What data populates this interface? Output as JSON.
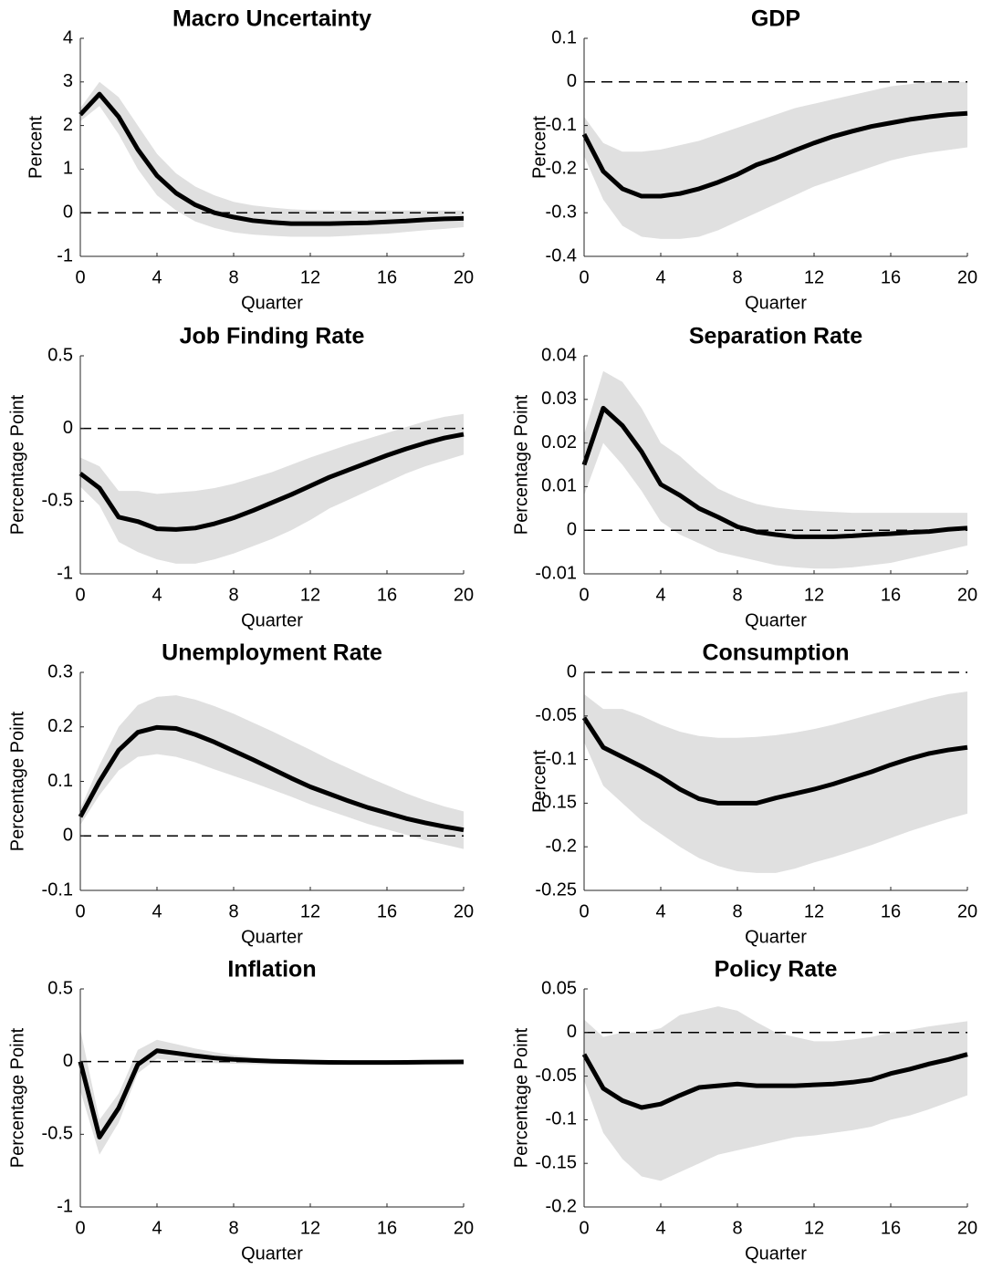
{
  "chart_data": [
    {
      "type": "line",
      "title": "Macro Uncertainty",
      "xlabel": "Quarter",
      "ylabel": "Percent",
      "x": [
        0,
        1,
        2,
        3,
        4,
        5,
        6,
        7,
        8,
        9,
        10,
        11,
        12,
        13,
        14,
        15,
        16,
        17,
        18,
        19,
        20
      ],
      "xlim": [
        0,
        20
      ],
      "xticks": [
        0,
        4,
        8,
        12,
        16,
        20
      ],
      "ylim": [
        -1,
        4
      ],
      "yticks": [
        -1,
        0,
        1,
        2,
        3,
        4
      ],
      "reference_line": 0,
      "series": [
        {
          "color": "#000000",
          "values": [
            2.25,
            2.72,
            2.2,
            1.45,
            0.85,
            0.45,
            0.18,
            0.0,
            -0.1,
            -0.18,
            -0.22,
            -0.25,
            -0.25,
            -0.25,
            -0.24,
            -0.23,
            -0.21,
            -0.19,
            -0.16,
            -0.14,
            -0.13
          ]
        }
      ],
      "band": {
        "color": "#e0e0e0",
        "upper": [
          2.4,
          3.0,
          2.65,
          2.0,
          1.35,
          0.9,
          0.6,
          0.4,
          0.25,
          0.17,
          0.12,
          0.08,
          0.06,
          0.05,
          0.05,
          0.05,
          0.05,
          0.05,
          0.05,
          0.05,
          0.05
        ],
        "lower": [
          2.1,
          2.45,
          1.8,
          1.0,
          0.4,
          0.05,
          -0.2,
          -0.35,
          -0.45,
          -0.5,
          -0.53,
          -0.55,
          -0.55,
          -0.55,
          -0.53,
          -0.5,
          -0.48,
          -0.44,
          -0.4,
          -0.37,
          -0.33
        ]
      }
    },
    {
      "type": "line",
      "title": "GDP",
      "xlabel": "Quarter",
      "ylabel": "Percent",
      "x": [
        0,
        1,
        2,
        3,
        4,
        5,
        6,
        7,
        8,
        9,
        10,
        11,
        12,
        13,
        14,
        15,
        16,
        17,
        18,
        19,
        20
      ],
      "xlim": [
        0,
        20
      ],
      "xticks": [
        0,
        4,
        8,
        12,
        16,
        20
      ],
      "ylim": [
        -0.4,
        0.1
      ],
      "yticks": [
        -0.4,
        -0.3,
        -0.2,
        -0.1,
        0,
        0.1
      ],
      "reference_line": 0,
      "series": [
        {
          "color": "#000000",
          "values": [
            -0.12,
            -0.205,
            -0.245,
            -0.262,
            -0.262,
            -0.256,
            -0.245,
            -0.23,
            -0.212,
            -0.19,
            -0.175,
            -0.157,
            -0.14,
            -0.125,
            -0.113,
            -0.102,
            -0.094,
            -0.086,
            -0.08,
            -0.075,
            -0.072
          ]
        }
      ],
      "band": {
        "color": "#e0e0e0",
        "upper": [
          -0.08,
          -0.14,
          -0.16,
          -0.16,
          -0.155,
          -0.145,
          -0.135,
          -0.12,
          -0.105,
          -0.09,
          -0.075,
          -0.06,
          -0.05,
          -0.04,
          -0.03,
          -0.02,
          -0.01,
          -0.005,
          0,
          0,
          0
        ],
        "lower": [
          -0.17,
          -0.27,
          -0.33,
          -0.355,
          -0.36,
          -0.36,
          -0.355,
          -0.34,
          -0.32,
          -0.3,
          -0.28,
          -0.26,
          -0.24,
          -0.225,
          -0.21,
          -0.195,
          -0.18,
          -0.17,
          -0.162,
          -0.156,
          -0.15
        ]
      }
    },
    {
      "type": "line",
      "title": "Job Finding Rate",
      "xlabel": "Quarter",
      "ylabel": "Percentage Point",
      "x": [
        0,
        1,
        2,
        3,
        4,
        5,
        6,
        7,
        8,
        9,
        10,
        11,
        12,
        13,
        14,
        15,
        16,
        17,
        18,
        19,
        20
      ],
      "xlim": [
        0,
        20
      ],
      "xticks": [
        0,
        4,
        8,
        12,
        16,
        20
      ],
      "ylim": [
        -1,
        0.5
      ],
      "yticks": [
        -1,
        -0.5,
        0,
        0.5
      ],
      "reference_line": 0,
      "series": [
        {
          "color": "#000000",
          "values": [
            -0.31,
            -0.41,
            -0.61,
            -0.64,
            -0.69,
            -0.695,
            -0.685,
            -0.655,
            -0.615,
            -0.565,
            -0.51,
            -0.455,
            -0.395,
            -0.335,
            -0.285,
            -0.235,
            -0.185,
            -0.14,
            -0.1,
            -0.065,
            -0.04
          ]
        }
      ],
      "band": {
        "color": "#e0e0e0",
        "upper": [
          -0.2,
          -0.26,
          -0.43,
          -0.43,
          -0.45,
          -0.44,
          -0.43,
          -0.41,
          -0.38,
          -0.34,
          -0.3,
          -0.25,
          -0.2,
          -0.155,
          -0.11,
          -0.07,
          -0.03,
          0.01,
          0.05,
          0.08,
          0.1
        ],
        "lower": [
          -0.4,
          -0.53,
          -0.78,
          -0.85,
          -0.9,
          -0.93,
          -0.93,
          -0.9,
          -0.86,
          -0.81,
          -0.76,
          -0.7,
          -0.63,
          -0.55,
          -0.49,
          -0.43,
          -0.37,
          -0.31,
          -0.26,
          -0.22,
          -0.18
        ]
      }
    },
    {
      "type": "line",
      "title": "Separation Rate",
      "xlabel": "Quarter",
      "ylabel": "Percentage Point",
      "x": [
        0,
        1,
        2,
        3,
        4,
        5,
        6,
        7,
        8,
        9,
        10,
        11,
        12,
        13,
        14,
        15,
        16,
        17,
        18,
        19,
        20
      ],
      "xlim": [
        0,
        20
      ],
      "xticks": [
        0,
        4,
        8,
        12,
        16,
        20
      ],
      "ylim": [
        -0.01,
        0.04
      ],
      "yticks": [
        -0.01,
        0,
        0.01,
        0.02,
        0.03,
        0.04
      ],
      "reference_line": 0,
      "series": [
        {
          "color": "#000000",
          "values": [
            0.015,
            0.028,
            0.024,
            0.018,
            0.0105,
            0.008,
            0.005,
            0.003,
            0.0008,
            -0.0004,
            -0.001,
            -0.0015,
            -0.0015,
            -0.0015,
            -0.0013,
            -0.001,
            -0.0008,
            -0.0005,
            -0.0003,
            0.0002,
            0.0005
          ]
        }
      ],
      "band": {
        "color": "#e0e0e0",
        "upper": [
          0.022,
          0.0365,
          0.034,
          0.028,
          0.02,
          0.017,
          0.013,
          0.0095,
          0.0075,
          0.006,
          0.0052,
          0.0047,
          0.0044,
          0.0042,
          0.004,
          0.004,
          0.004,
          0.004,
          0.004,
          0.004,
          0.004
        ],
        "lower": [
          0.008,
          0.02,
          0.015,
          0.009,
          0.002,
          -0.001,
          -0.003,
          -0.005,
          -0.006,
          -0.007,
          -0.008,
          -0.0085,
          -0.0088,
          -0.0088,
          -0.0085,
          -0.008,
          -0.0075,
          -0.0065,
          -0.0055,
          -0.0045,
          -0.0035
        ]
      }
    },
    {
      "type": "line",
      "title": "Unemployment Rate",
      "xlabel": "Quarter",
      "ylabel": "Percentage Point",
      "x": [
        0,
        1,
        2,
        3,
        4,
        5,
        6,
        7,
        8,
        9,
        10,
        11,
        12,
        13,
        14,
        15,
        16,
        17,
        18,
        19,
        20
      ],
      "xlim": [
        0,
        20
      ],
      "xticks": [
        0,
        4,
        8,
        12,
        16,
        20
      ],
      "ylim": [
        -0.1,
        0.3
      ],
      "yticks": [
        -0.1,
        0,
        0.1,
        0.2,
        0.3
      ],
      "reference_line": 0,
      "series": [
        {
          "color": "#000000",
          "values": [
            0.035,
            0.1,
            0.157,
            0.19,
            0.199,
            0.197,
            0.186,
            0.172,
            0.156,
            0.14,
            0.123,
            0.106,
            0.09,
            0.077,
            0.064,
            0.052,
            0.042,
            0.032,
            0.024,
            0.017,
            0.011
          ]
        }
      ],
      "band": {
        "color": "#e0e0e0",
        "upper": [
          0.05,
          0.13,
          0.2,
          0.24,
          0.255,
          0.258,
          0.25,
          0.238,
          0.224,
          0.208,
          0.192,
          0.175,
          0.158,
          0.14,
          0.124,
          0.108,
          0.093,
          0.078,
          0.065,
          0.054,
          0.045
        ],
        "lower": [
          0.02,
          0.075,
          0.12,
          0.145,
          0.15,
          0.145,
          0.135,
          0.122,
          0.11,
          0.098,
          0.085,
          0.072,
          0.058,
          0.046,
          0.034,
          0.022,
          0.012,
          0.002,
          -0.008,
          -0.016,
          -0.024
        ]
      }
    },
    {
      "type": "line",
      "title": "Consumption",
      "xlabel": "Quarter",
      "ylabel": "Percent",
      "x": [
        0,
        1,
        2,
        3,
        4,
        5,
        6,
        7,
        8,
        9,
        10,
        11,
        12,
        13,
        14,
        15,
        16,
        17,
        18,
        19,
        20
      ],
      "xlim": [
        0,
        20
      ],
      "xticks": [
        0,
        4,
        8,
        12,
        16,
        20
      ],
      "ylim": [
        -0.25,
        0
      ],
      "yticks": [
        -0.25,
        -0.2,
        -0.15,
        -0.1,
        -0.05,
        0
      ],
      "reference_line": 0,
      "series": [
        {
          "color": "#000000",
          "values": [
            -0.052,
            -0.086,
            -0.097,
            -0.108,
            -0.12,
            -0.134,
            -0.145,
            -0.15,
            -0.15,
            -0.15,
            -0.144,
            -0.139,
            -0.134,
            -0.128,
            -0.121,
            -0.114,
            -0.106,
            -0.099,
            -0.093,
            -0.089,
            -0.086
          ]
        }
      ],
      "band": {
        "color": "#e0e0e0",
        "upper": [
          -0.025,
          -0.042,
          -0.042,
          -0.05,
          -0.06,
          -0.068,
          -0.073,
          -0.075,
          -0.075,
          -0.074,
          -0.072,
          -0.069,
          -0.065,
          -0.06,
          -0.054,
          -0.048,
          -0.042,
          -0.036,
          -0.03,
          -0.025,
          -0.022
        ],
        "lower": [
          -0.08,
          -0.13,
          -0.15,
          -0.17,
          -0.185,
          -0.2,
          -0.213,
          -0.222,
          -0.228,
          -0.23,
          -0.23,
          -0.225,
          -0.218,
          -0.212,
          -0.205,
          -0.198,
          -0.19,
          -0.182,
          -0.175,
          -0.168,
          -0.162
        ]
      }
    },
    {
      "type": "line",
      "title": "Inflation",
      "xlabel": "Quarter",
      "ylabel": "Percentage Point",
      "x": [
        0,
        1,
        2,
        3,
        4,
        5,
        6,
        7,
        8,
        9,
        10,
        11,
        12,
        13,
        14,
        15,
        16,
        17,
        18,
        19,
        20
      ],
      "xlim": [
        0,
        20
      ],
      "xticks": [
        0,
        4,
        8,
        12,
        16,
        20
      ],
      "ylim": [
        -1,
        0.5
      ],
      "yticks": [
        -1,
        -0.5,
        0,
        0.5
      ],
      "reference_line": 0,
      "series": [
        {
          "color": "#000000",
          "values": [
            0,
            -0.52,
            -0.32,
            -0.02,
            0.075,
            0.058,
            0.04,
            0.025,
            0.015,
            0.008,
            0.003,
            0,
            -0.003,
            -0.005,
            -0.006,
            -0.006,
            -0.006,
            -0.005,
            -0.004,
            -0.003,
            -0.002
          ]
        }
      ],
      "band": {
        "color": "#e0e0e0",
        "upper": [
          0.22,
          -0.4,
          -0.22,
          0.08,
          0.15,
          0.12,
          0.09,
          0.065,
          0.045,
          0.03,
          0.02,
          0.012,
          0.008,
          0.005,
          0.003,
          0.002,
          0.002,
          0.002,
          0.002,
          0.002,
          0.002
        ],
        "lower": [
          -0.2,
          -0.64,
          -0.42,
          -0.08,
          0.02,
          0.005,
          -0.005,
          -0.01,
          -0.015,
          -0.018,
          -0.02,
          -0.02,
          -0.02,
          -0.02,
          -0.02,
          -0.018,
          -0.016,
          -0.014,
          -0.012,
          -0.01,
          -0.008
        ]
      }
    },
    {
      "type": "line",
      "title": "Policy Rate",
      "xlabel": "Quarter",
      "ylabel": "Percentage Point",
      "x": [
        0,
        1,
        2,
        3,
        4,
        5,
        6,
        7,
        8,
        9,
        10,
        11,
        12,
        13,
        14,
        15,
        16,
        17,
        18,
        19,
        20
      ],
      "xlim": [
        0,
        20
      ],
      "xticks": [
        0,
        4,
        8,
        12,
        16,
        20
      ],
      "ylim": [
        -0.2,
        0.05
      ],
      "yticks": [
        -0.2,
        -0.15,
        -0.1,
        -0.05,
        0,
        0.05
      ],
      "reference_line": 0,
      "series": [
        {
          "color": "#000000",
          "values": [
            -0.025,
            -0.064,
            -0.078,
            -0.086,
            -0.082,
            -0.072,
            -0.063,
            -0.061,
            -0.059,
            -0.061,
            -0.061,
            -0.061,
            -0.06,
            -0.059,
            -0.057,
            -0.054,
            -0.047,
            -0.042,
            -0.036,
            -0.031,
            -0.025
          ]
        }
      ],
      "band": {
        "color": "#e0e0e0",
        "upper": [
          0.015,
          -0.005,
          0.0,
          0.0,
          0.005,
          0.02,
          0.025,
          0.03,
          0.025,
          0.012,
          0.0,
          -0.005,
          -0.01,
          -0.01,
          -0.008,
          -0.005,
          0.0,
          0.003,
          0.007,
          0.01,
          0.013
        ],
        "lower": [
          -0.055,
          -0.115,
          -0.145,
          -0.165,
          -0.17,
          -0.16,
          -0.15,
          -0.14,
          -0.135,
          -0.13,
          -0.125,
          -0.12,
          -0.118,
          -0.115,
          -0.112,
          -0.108,
          -0.1,
          -0.095,
          -0.088,
          -0.08,
          -0.072
        ]
      }
    }
  ]
}
